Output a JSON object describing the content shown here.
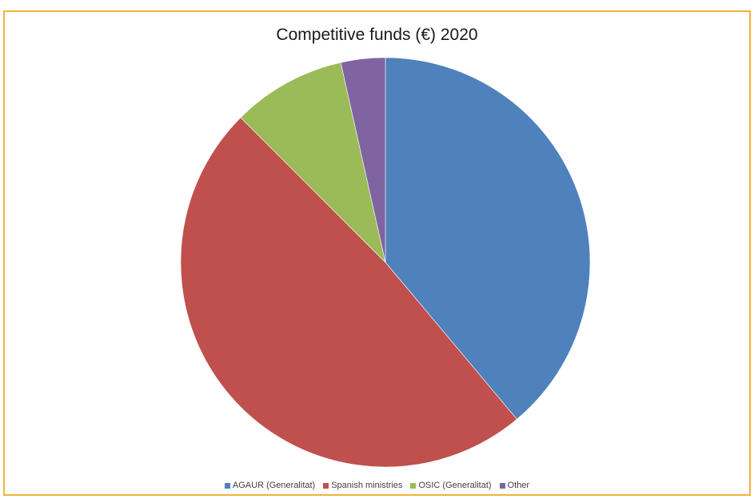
{
  "chart_data": {
    "type": "pie",
    "title": "Competitive funds (€) 2020",
    "categories": [
      "AGAUR (Generalitat)",
      "Spanish ministries",
      "OSIC (Generalitat)",
      "Other"
    ],
    "values": [
      38.9,
      48.6,
      9.0,
      3.5
    ],
    "colors": [
      "#4f81bd",
      "#c0504d",
      "#9bbb59",
      "#8064a2"
    ],
    "legend_position": "bottom"
  }
}
